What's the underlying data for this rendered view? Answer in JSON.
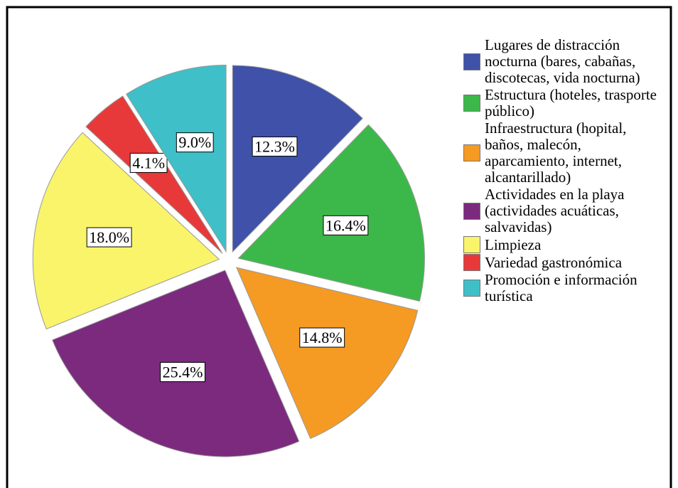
{
  "chart_data": {
    "type": "pie",
    "categories": [
      "Lugares de distracción nocturna (bares, cabañas, discotecas, vida nocturna)",
      "Estructura (hoteles, trasporte público)",
      "Infraestructura (hopital, baños, malecón, aparcamiento, internet, alcantarillado)",
      "Actividades en la playa (actividades acuáticas, salvavidas)",
      "Limpieza",
      "Variedad gastronómica",
      "Promoción e información turística"
    ],
    "values": [
      12.3,
      16.4,
      14.8,
      25.4,
      18.0,
      4.1,
      9.0
    ],
    "value_labels": [
      "12.3%",
      "16.4%",
      "14.8%",
      "25.4%",
      "18.0%",
      "4.1%",
      "9.0%"
    ],
    "colors": [
      "#3f51a8",
      "#3cb84a",
      "#f59a23",
      "#7b2a7e",
      "#f9f46a",
      "#e8393a",
      "#3fbfc7"
    ],
    "legend": "right"
  }
}
